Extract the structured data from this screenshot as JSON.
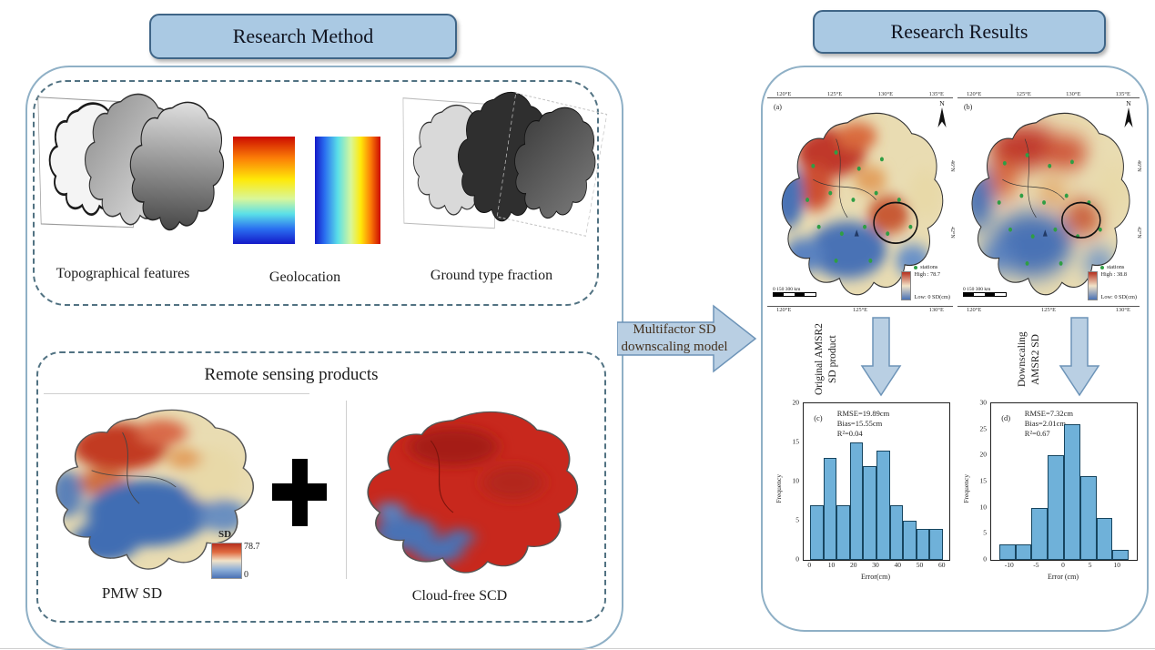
{
  "colors": {
    "header_fill": "#aac9e3",
    "header_border": "#3f6587",
    "arrow_fill": "#b9cfe3",
    "arrow_border": "#6d94b8",
    "histogram_bar": "#6fb1d9",
    "map_red": "#c0392b",
    "map_blue": "#4a72b5",
    "dashed_border": "#517282",
    "station_green": "#2f9e44"
  },
  "headers": {
    "method": "Research Method",
    "results": "Research Results"
  },
  "method": {
    "features": {
      "topographical_label": "Topographical features",
      "geolocation_label": "Geolocation",
      "ground_type_label": "Ground type fraction"
    },
    "remote": {
      "title": "Remote sensing products",
      "pmw_label": "PMW SD",
      "plus_symbol": "+",
      "scd_label": "Cloud-free SCD",
      "colorbar": {
        "title": "SD",
        "max": "78.7",
        "min": "0"
      }
    }
  },
  "flow": {
    "main_arrow": {
      "line1": "Multifactor SD",
      "line2": "downscaling model"
    },
    "arrow_original": {
      "line1": "Original AMSR2",
      "line2": "SD product"
    },
    "arrow_downscaling": {
      "line1": "Downscaling",
      "line2": "AMSR2 SD"
    }
  },
  "results": {
    "map_a": {
      "panel": "(a)",
      "north": "N",
      "top_ticks": [
        "120°E",
        "125°E",
        "130°E",
        "135°E"
      ],
      "bottom_ticks": [
        "120°E",
        "125°E",
        "130°E"
      ],
      "right_ticks": [
        "46°N",
        "42°N"
      ],
      "legend": {
        "stations": "stations",
        "high": "High : 78.7",
        "low": "Low: 0 SD(cm)"
      },
      "scalebar": {
        "nums": "0   150   300",
        "unit": "km"
      }
    },
    "map_b": {
      "panel": "(b)",
      "north": "N",
      "top_ticks": [
        "120°E",
        "125°E",
        "130°E",
        "135°E"
      ],
      "bottom_ticks": [
        "120°E",
        "125°E",
        "130°E"
      ],
      "right_ticks": [
        "46°N",
        "42°N"
      ],
      "legend": {
        "stations": "stations",
        "high": "High : 38.8",
        "low": "Low: 0 SD(cm)"
      },
      "scalebar": {
        "nums": "0   150   300",
        "unit": "km"
      }
    }
  },
  "chart_data": [
    {
      "type": "bar",
      "panel": "(c)",
      "stats": [
        "RMSE=19.89cm",
        "Bias=15.55cm",
        "R²=0.04"
      ],
      "bin_edges": [
        0,
        6,
        12,
        18,
        24,
        30,
        36,
        42,
        48,
        54,
        60
      ],
      "values": [
        7,
        13,
        7,
        15,
        12,
        14,
        7,
        5,
        4,
        4
      ],
      "xlabel": "Error(cm)",
      "ylabel": "Frequency",
      "xlim": [
        -3,
        63
      ],
      "ylim": [
        0,
        20
      ],
      "xticks": [
        0,
        10,
        20,
        30,
        40,
        50,
        60
      ],
      "yticks": [
        0,
        5,
        10,
        15,
        20
      ],
      "grid": false,
      "legend_position": "none"
    },
    {
      "type": "bar",
      "panel": "(d)",
      "stats": [
        "RMSE=7.32cm",
        "Bias=2.01cm",
        "R²=0.67"
      ],
      "bin_edges": [
        -12,
        -9,
        -6,
        -3,
        0,
        3,
        6,
        9,
        12
      ],
      "values": [
        3,
        3,
        10,
        20,
        26,
        16,
        8,
        2
      ],
      "xlabel": "Error (cm)",
      "ylabel": "Frequency",
      "xlim": [
        -13.5,
        13.5
      ],
      "ylim": [
        0,
        30
      ],
      "xticks": [
        -10,
        -5,
        0,
        5,
        10
      ],
      "yticks": [
        0,
        5,
        10,
        15,
        20,
        25,
        30
      ],
      "grid": false,
      "legend_position": "none"
    }
  ]
}
